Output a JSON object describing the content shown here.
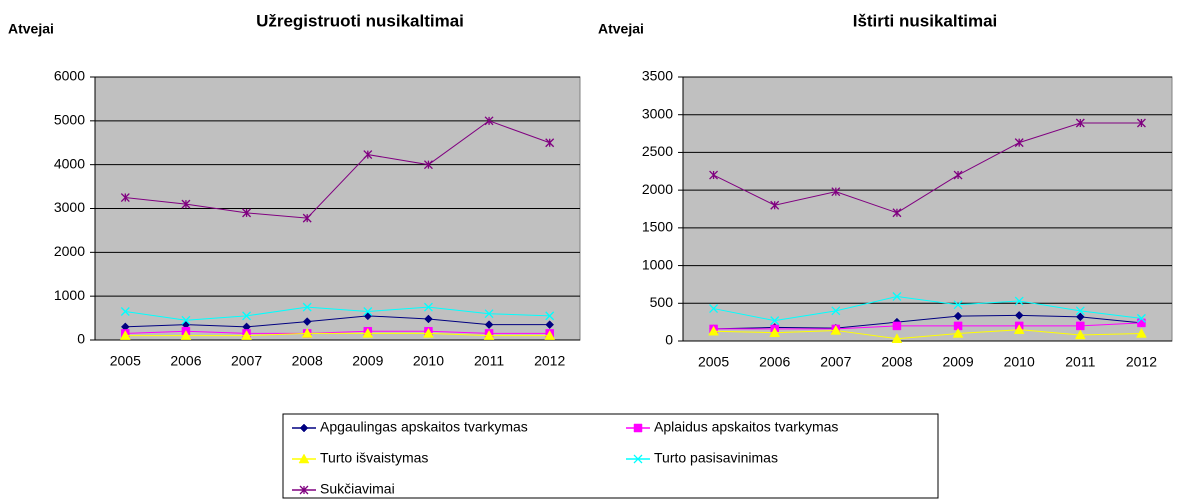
{
  "chart_data": [
    {
      "type": "line",
      "title": "Užregistruoti nusikaltimai",
      "y_label": "Atvejai",
      "categories": [
        "2005",
        "2006",
        "2007",
        "2008",
        "2009",
        "2010",
        "2011",
        "2012"
      ],
      "ylim": [
        0,
        6000
      ],
      "yticks": [
        0,
        1000,
        2000,
        3000,
        4000,
        5000,
        6000
      ],
      "grid": true,
      "series": [
        {
          "values": [
            300,
            350,
            300,
            420,
            550,
            480,
            350,
            350
          ]
        },
        {
          "values": [
            150,
            200,
            150,
            150,
            200,
            200,
            150,
            150
          ]
        },
        {
          "values": [
            100,
            100,
            100,
            150,
            150,
            150,
            100,
            100
          ]
        },
        {
          "values": [
            650,
            450,
            550,
            750,
            650,
            750,
            600,
            550
          ]
        },
        {
          "values": [
            3250,
            3100,
            2900,
            2780,
            4230,
            4000,
            5000,
            4500
          ]
        }
      ]
    },
    {
      "type": "line",
      "title": "Ištirti nusikaltimai",
      "y_label": "Atvejai",
      "categories": [
        "2005",
        "2006",
        "2007",
        "2008",
        "2009",
        "2010",
        "2011",
        "2012"
      ],
      "ylim": [
        0,
        3500
      ],
      "yticks": [
        0,
        500,
        1000,
        1500,
        2000,
        2500,
        3000,
        3500
      ],
      "grid": true,
      "series": [
        {
          "values": [
            160,
            180,
            170,
            250,
            330,
            340,
            320,
            240
          ]
        },
        {
          "values": [
            160,
            160,
            160,
            200,
            200,
            200,
            200,
            240
          ]
        },
        {
          "values": [
            130,
            110,
            140,
            30,
            100,
            150,
            80,
            100
          ]
        },
        {
          "values": [
            430,
            270,
            400,
            590,
            480,
            530,
            400,
            300
          ]
        },
        {
          "values": [
            2200,
            1800,
            1980,
            1700,
            2200,
            2630,
            2890,
            2890
          ]
        }
      ]
    }
  ],
  "legend": {
    "series": [
      {
        "name": "Apgaulingas apskaitos tvarkymas",
        "color": "#000080",
        "marker": "diamond"
      },
      {
        "name": "Aplaidus apskaitos tvarkymas",
        "color": "#ff00ff",
        "marker": "square"
      },
      {
        "name": "Turto išvaistymas",
        "color": "#ffff00",
        "marker": "triangle"
      },
      {
        "name": "Turto pasisavinimas",
        "color": "#00ffff",
        "marker": "x"
      },
      {
        "name": "Sukčiavimai",
        "color": "#800080",
        "marker": "star"
      }
    ]
  }
}
